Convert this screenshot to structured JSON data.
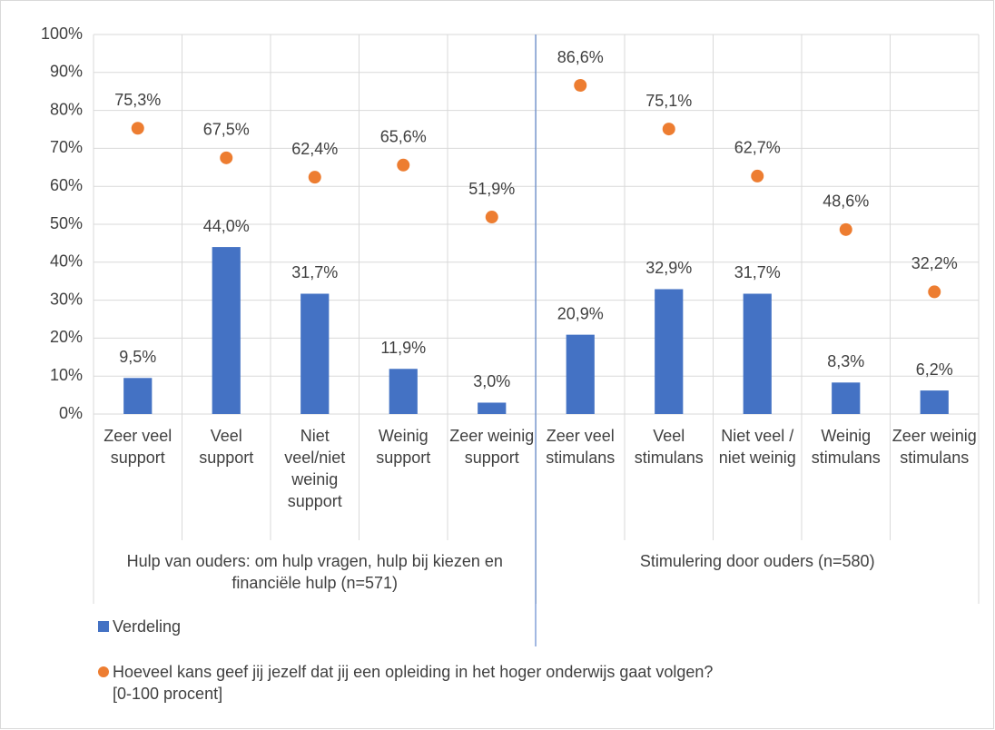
{
  "chart_data": {
    "type": "bar",
    "categories": [
      "Zeer veel support",
      "Veel support",
      "Niet veel/niet weinig support",
      "Weinig support",
      "Zeer weinig support",
      "Zeer veel stimulans",
      "Veel stimulans",
      "Niet veel / niet weinig",
      "Weinig stimulans",
      "Zeer weinig stimulans"
    ],
    "groups": [
      {
        "label": "Hulp van ouders: om hulp vragen, hulp bij kiezen en financiële hulp (n=571)",
        "size": 5
      },
      {
        "label": "Stimulering door ouders (n=580)",
        "size": 5
      }
    ],
    "series": [
      {
        "name": "Verdeling",
        "type": "bar",
        "color": "#4472c4",
        "values": [
          9.5,
          44.0,
          31.7,
          11.9,
          3.0,
          20.9,
          32.9,
          31.7,
          8.3,
          6.2
        ],
        "value_labels": [
          "9,5%",
          "44,0%",
          "31,7%",
          "11,9%",
          "3,0%",
          "20,9%",
          "32,9%",
          "31,7%",
          "8,3%",
          "6,2%"
        ]
      },
      {
        "name": "Hoeveel kans geef jij jezelf dat jij een opleiding in het hoger onderwijs gaat volgen? [0-100 procent]",
        "type": "scatter",
        "color": "#ed7d31",
        "values": [
          75.3,
          67.5,
          62.4,
          65.6,
          51.9,
          86.6,
          75.1,
          62.7,
          48.6,
          32.2
        ],
        "value_labels": [
          "75,3%",
          "67,5%",
          "62,4%",
          "65,6%",
          "51,9%",
          "86,6%",
          "75,1%",
          "62,7%",
          "48,6%",
          "32,2%"
        ]
      }
    ],
    "ylim": [
      0,
      100
    ],
    "yticks": [
      {
        "value": 0,
        "label": "0%"
      },
      {
        "value": 10,
        "label": "10%"
      },
      {
        "value": 20,
        "label": "20%"
      },
      {
        "value": 30,
        "label": "30%"
      },
      {
        "value": 40,
        "label": "40%"
      },
      {
        "value": 50,
        "label": "50%"
      },
      {
        "value": 60,
        "label": "60%"
      },
      {
        "value": 70,
        "label": "70%"
      },
      {
        "value": 80,
        "label": "80%"
      },
      {
        "value": 90,
        "label": "90%"
      },
      {
        "value": 100,
        "label": "100%"
      }
    ],
    "grid": true,
    "legend": "bottom"
  }
}
